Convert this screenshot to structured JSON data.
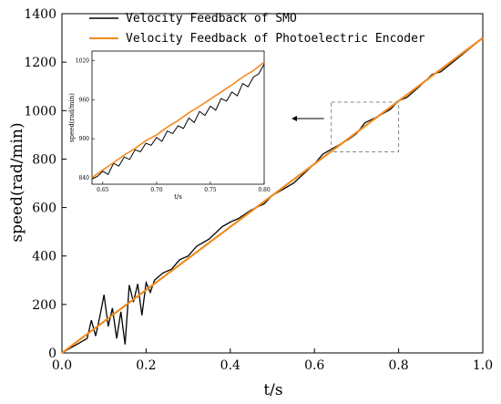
{
  "chart_data": {
    "type": "line",
    "xlabel": "t/s",
    "ylabel": "speed(rad/min)",
    "xlim": [
      0,
      1
    ],
    "ylim": [
      0,
      1400
    ],
    "xticks": [
      "0.0",
      "0.2",
      "0.4",
      "0.6",
      "0.8",
      "1.0"
    ],
    "yticks": [
      "0",
      "200",
      "400",
      "600",
      "800",
      "1000",
      "1200",
      "1400"
    ],
    "legend_position": "top-left",
    "series": [
      {
        "name": "Velocity Feedback of SMO",
        "color": "#000000",
        "x": [
          0.0,
          0.02,
          0.04,
          0.06,
          0.07,
          0.08,
          0.09,
          0.1,
          0.11,
          0.12,
          0.13,
          0.14,
          0.15,
          0.16,
          0.17,
          0.18,
          0.19,
          0.2,
          0.21,
          0.22,
          0.24,
          0.26,
          0.28,
          0.3,
          0.32,
          0.35,
          0.38,
          0.4,
          0.42,
          0.45,
          0.48,
          0.5,
          0.55,
          0.6,
          0.62,
          0.65,
          0.68,
          0.7,
          0.72,
          0.75,
          0.78,
          0.8,
          0.82,
          0.85,
          0.88,
          0.9,
          0.95,
          1.0
        ],
        "values": [
          0,
          20,
          40,
          60,
          135,
          70,
          150,
          240,
          110,
          185,
          60,
          170,
          35,
          280,
          210,
          285,
          155,
          290,
          250,
          300,
          330,
          345,
          385,
          400,
          440,
          470,
          520,
          540,
          555,
          590,
          615,
          650,
          700,
          780,
          820,
          850,
          880,
          905,
          950,
          975,
          1005,
          1040,
          1055,
          1100,
          1150,
          1160,
          1230,
          1300
        ]
      },
      {
        "name": "Velocity Feedback of Photoelectric Encoder",
        "color": "#F28A1E",
        "x": [
          0.0,
          0.1,
          0.2,
          0.3,
          0.4,
          0.5,
          0.6,
          0.7,
          0.8,
          0.9,
          1.0
        ],
        "values": [
          0,
          130,
          260,
          390,
          520,
          650,
          780,
          910,
          1040,
          1170,
          1300
        ]
      }
    ],
    "inset": {
      "xlim": [
        0.64,
        0.8
      ],
      "ylim": [
        830,
        1035
      ],
      "xticks": [
        "0.65",
        "0.70",
        "0.75",
        "0.80"
      ],
      "yticks": [
        "840",
        "900",
        "960",
        "1020"
      ],
      "xlabel": "t/s",
      "ylabel": "speed(rad/min)",
      "smo": {
        "x": [
          0.64,
          0.645,
          0.65,
          0.655,
          0.66,
          0.665,
          0.67,
          0.675,
          0.68,
          0.685,
          0.69,
          0.695,
          0.7,
          0.705,
          0.71,
          0.715,
          0.72,
          0.725,
          0.73,
          0.735,
          0.74,
          0.745,
          0.75,
          0.755,
          0.76,
          0.765,
          0.77,
          0.775,
          0.78,
          0.785,
          0.79,
          0.795,
          0.8
        ],
        "values": [
          838,
          842,
          850,
          845,
          862,
          858,
          872,
          868,
          883,
          880,
          893,
          890,
          902,
          896,
          912,
          908,
          920,
          916,
          932,
          925,
          942,
          936,
          950,
          944,
          962,
          958,
          972,
          966,
          985,
          980,
          995,
          1000,
          1015
        ]
      },
      "encoder": {
        "x": [
          0.64,
          0.65,
          0.66,
          0.67,
          0.68,
          0.69,
          0.7,
          0.71,
          0.72,
          0.73,
          0.74,
          0.75,
          0.76,
          0.77,
          0.78,
          0.79,
          0.8
        ],
        "values": [
          840,
          852,
          863,
          875,
          885,
          897,
          906,
          918,
          928,
          940,
          950,
          961,
          972,
          983,
          995,
          1005,
          1018
        ]
      }
    }
  }
}
